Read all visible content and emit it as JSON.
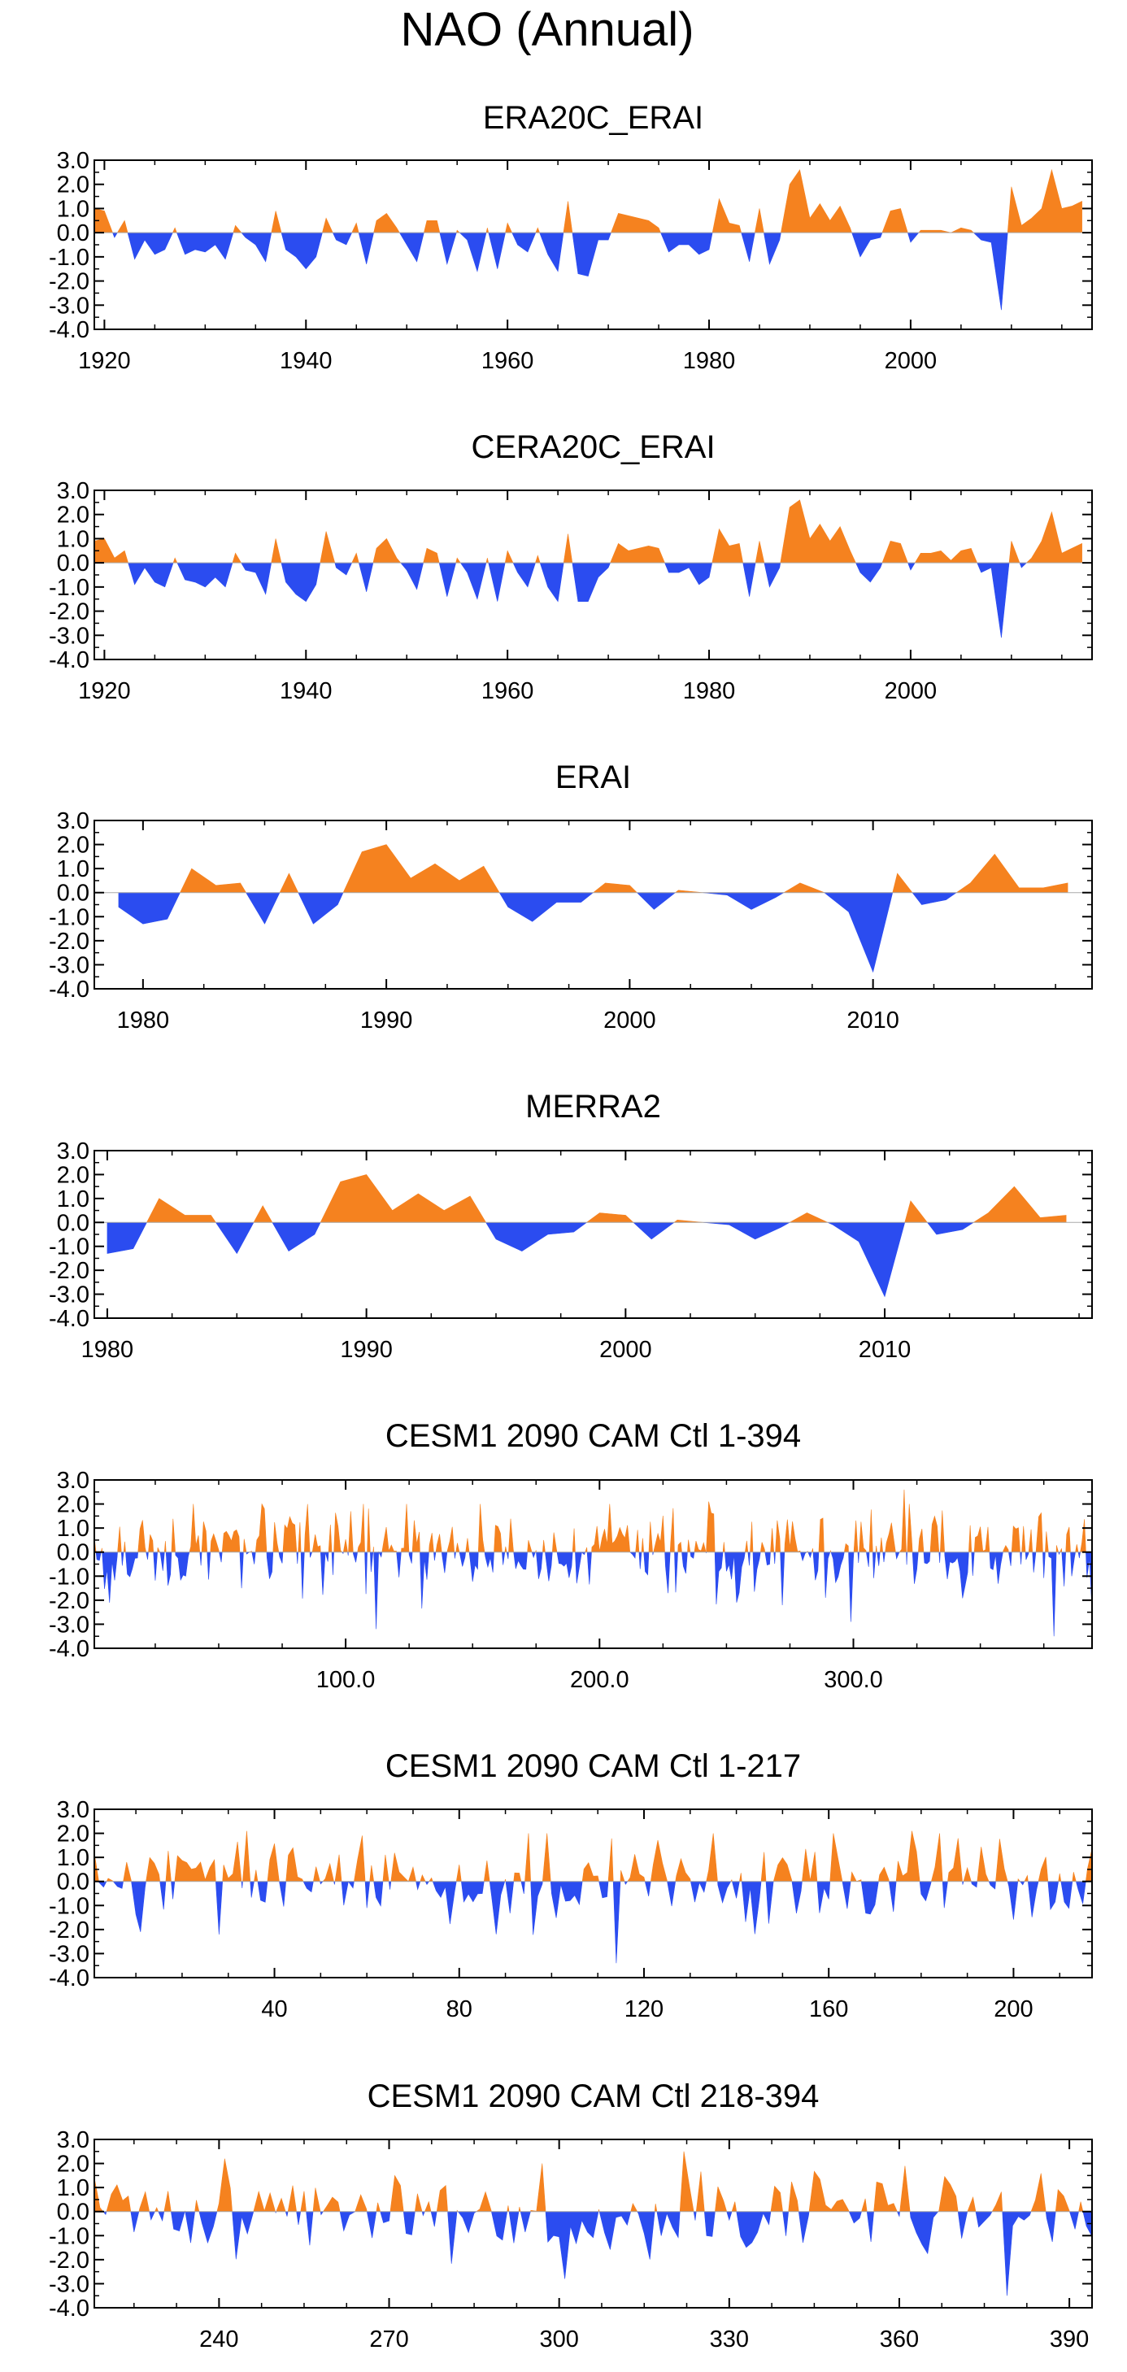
{
  "figure": {
    "title": "NAO (Annual)"
  },
  "colors": {
    "positive": "#f5821f",
    "negative": "#2b4cf0",
    "axis": "#000000",
    "zero_line": "#aaaaaa"
  },
  "chart_data": [
    {
      "type": "area",
      "title": "ERA20C_ERAI",
      "xlim": [
        1919,
        2018
      ],
      "ylim": [
        -4.0,
        3.0
      ],
      "yticks": [
        "3.0",
        "2.0",
        "1.0",
        "0.0",
        "-1.0",
        "-2.0",
        "-3.0",
        "-4.0"
      ],
      "xticks": [
        1920,
        1940,
        1960,
        1980,
        2000
      ],
      "xtick_labels": [
        "1920",
        "1940",
        "1960",
        "1980",
        "2000"
      ],
      "x": [
        1919,
        1920,
        1921,
        1922,
        1923,
        1924,
        1925,
        1926,
        1927,
        1928,
        1929,
        1930,
        1931,
        1932,
        1933,
        1934,
        1935,
        1936,
        1937,
        1938,
        1939,
        1940,
        1941,
        1942,
        1943,
        1944,
        1945,
        1946,
        1947,
        1948,
        1949,
        1950,
        1951,
        1952,
        1953,
        1954,
        1955,
        1956,
        1957,
        1958,
        1959,
        1960,
        1961,
        1962,
        1963,
        1964,
        1965,
        1966,
        1967,
        1968,
        1969,
        1970,
        1971,
        1972,
        1973,
        1974,
        1975,
        1976,
        1977,
        1978,
        1979,
        1980,
        1981,
        1982,
        1983,
        1984,
        1985,
        1986,
        1987,
        1988,
        1989,
        1990,
        1991,
        1992,
        1993,
        1994,
        1995,
        1996,
        1997,
        1998,
        1999,
        2000,
        2001,
        2002,
        2003,
        2004,
        2005,
        2006,
        2007,
        2008,
        2009,
        2010,
        2011,
        2012,
        2013,
        2014,
        2015,
        2016,
        2017
      ],
      "values": [
        1.0,
        0.9,
        -0.2,
        0.5,
        -1.1,
        -0.3,
        -0.9,
        -0.7,
        0.2,
        -0.9,
        -0.7,
        -0.8,
        -0.5,
        -1.1,
        0.3,
        -0.2,
        -0.5,
        -1.2,
        0.9,
        -0.7,
        -1.0,
        -1.5,
        -1.0,
        0.6,
        -0.3,
        -0.5,
        0.4,
        -1.3,
        0.5,
        0.8,
        0.2,
        -0.5,
        -1.2,
        0.5,
        0.5,
        -1.3,
        0.1,
        -0.3,
        -1.6,
        0.2,
        -1.5,
        0.4,
        -0.5,
        -0.8,
        0.2,
        -0.9,
        -1.6,
        1.3,
        -1.7,
        -1.8,
        -0.3,
        -0.3,
        0.8,
        0.7,
        0.6,
        0.5,
        0.2,
        -0.8,
        -0.5,
        -0.5,
        -0.9,
        -0.7,
        1.4,
        0.4,
        0.3,
        -1.2,
        1.0,
        -1.3,
        -0.3,
        2.0,
        2.6,
        0.6,
        1.2,
        0.5,
        1.1,
        0.2,
        -1.0,
        -0.3,
        -0.2,
        0.9,
        1.0,
        -0.4,
        0.1,
        0.1,
        0.1,
        0.0,
        0.2,
        0.1,
        -0.3,
        -0.4,
        -3.2,
        1.9,
        0.3,
        0.6,
        1.0,
        2.6,
        1.0,
        1.1,
        1.3
      ]
    },
    {
      "type": "area",
      "title": "CERA20C_ERAI",
      "xlim": [
        1919,
        2018
      ],
      "ylim": [
        -4.0,
        3.0
      ],
      "yticks": [
        "3.0",
        "2.0",
        "1.0",
        "0.0",
        "-1.0",
        "-2.0",
        "-3.0",
        "-4.0"
      ],
      "xticks": [
        1920,
        1940,
        1960,
        1980,
        2000
      ],
      "xtick_labels": [
        "1920",
        "1940",
        "1960",
        "1980",
        "2000"
      ],
      "x": [
        1919,
        1920,
        1921,
        1922,
        1923,
        1924,
        1925,
        1926,
        1927,
        1928,
        1929,
        1930,
        1931,
        1932,
        1933,
        1934,
        1935,
        1936,
        1937,
        1938,
        1939,
        1940,
        1941,
        1942,
        1943,
        1944,
        1945,
        1946,
        1947,
        1948,
        1949,
        1950,
        1951,
        1952,
        1953,
        1954,
        1955,
        1956,
        1957,
        1958,
        1959,
        1960,
        1961,
        1962,
        1963,
        1964,
        1965,
        1966,
        1967,
        1968,
        1969,
        1970,
        1971,
        1972,
        1973,
        1974,
        1975,
        1976,
        1977,
        1978,
        1979,
        1980,
        1981,
        1982,
        1983,
        1984,
        1985,
        1986,
        1987,
        1988,
        1989,
        1990,
        1991,
        1992,
        1993,
        1994,
        1995,
        1996,
        1997,
        1998,
        1999,
        2000,
        2001,
        2002,
        2003,
        2004,
        2005,
        2006,
        2007,
        2008,
        2009,
        2010,
        2011,
        2012,
        2013,
        2014,
        2015,
        2016,
        2017
      ],
      "values": [
        0.9,
        1.0,
        0.2,
        0.5,
        -0.9,
        -0.2,
        -0.8,
        -1.0,
        0.2,
        -0.7,
        -0.8,
        -1.0,
        -0.6,
        -1.0,
        0.4,
        -0.3,
        -0.4,
        -1.3,
        1.0,
        -0.8,
        -1.3,
        -1.6,
        -0.9,
        1.3,
        -0.2,
        -0.5,
        0.4,
        -1.2,
        0.6,
        1.0,
        0.2,
        -0.3,
        -1.1,
        0.6,
        0.4,
        -1.4,
        0.2,
        -0.4,
        -1.5,
        0.2,
        -1.6,
        0.5,
        -0.4,
        -1.0,
        0.3,
        -1.0,
        -1.6,
        1.2,
        -1.6,
        -1.6,
        -0.6,
        -0.2,
        0.8,
        0.5,
        0.6,
        0.7,
        0.6,
        -0.4,
        -0.4,
        -0.2,
        -0.9,
        -0.6,
        1.4,
        0.7,
        0.8,
        -1.4,
        0.9,
        -1.0,
        -0.2,
        2.3,
        2.6,
        1.0,
        1.6,
        0.9,
        1.5,
        0.5,
        -0.4,
        -0.8,
        -0.2,
        0.9,
        0.8,
        -0.3,
        0.4,
        0.4,
        0.5,
        0.1,
        0.5,
        0.6,
        -0.4,
        -0.2,
        -3.1,
        0.9,
        -0.2,
        0.2,
        0.9,
        2.1,
        0.4,
        0.6,
        0.8
      ]
    },
    {
      "type": "area",
      "title": "ERAI",
      "xlim": [
        1978,
        2019
      ],
      "ylim": [
        -4.0,
        3.0
      ],
      "yticks": [
        "3.0",
        "2.0",
        "1.0",
        "0.0",
        "-1.0",
        "-2.0",
        "-3.0",
        "-4.0"
      ],
      "xticks": [
        1980,
        1990,
        2000,
        2010
      ],
      "xtick_labels": [
        "1980",
        "1990",
        "2000",
        "2010"
      ],
      "x": [
        1979,
        1980,
        1981,
        1982,
        1983,
        1984,
        1985,
        1986,
        1987,
        1988,
        1989,
        1990,
        1991,
        1992,
        1993,
        1994,
        1995,
        1996,
        1997,
        1998,
        1999,
        2000,
        2001,
        2002,
        2003,
        2004,
        2005,
        2006,
        2007,
        2008,
        2009,
        2010,
        2011,
        2012,
        2013,
        2014,
        2015,
        2016,
        2017,
        2018
      ],
      "values": [
        -0.6,
        -1.3,
        -1.1,
        1.0,
        0.3,
        0.4,
        -1.3,
        0.8,
        -1.3,
        -0.5,
        1.7,
        2.0,
        0.6,
        1.2,
        0.5,
        1.1,
        -0.6,
        -1.2,
        -0.4,
        -0.4,
        0.4,
        0.3,
        -0.7,
        0.1,
        0.0,
        -0.1,
        -0.7,
        -0.2,
        0.4,
        0.0,
        -0.8,
        -3.3,
        0.8,
        -0.5,
        -0.3,
        0.4,
        1.6,
        0.2,
        0.2,
        0.4
      ]
    },
    {
      "type": "area",
      "title": "MERRA2",
      "xlim": [
        1979.5,
        2018
      ],
      "ylim": [
        -4.0,
        3.0
      ],
      "yticks": [
        "3.0",
        "2.0",
        "1.0",
        "0.0",
        "-1.0",
        "-2.0",
        "-3.0",
        "-4.0"
      ],
      "xticks": [
        1980,
        1990,
        2000,
        2010
      ],
      "xtick_labels": [
        "1980",
        "1990",
        "2000",
        "2010"
      ],
      "x": [
        1980,
        1981,
        1982,
        1983,
        1984,
        1985,
        1986,
        1987,
        1988,
        1989,
        1990,
        1991,
        1992,
        1993,
        1994,
        1995,
        1996,
        1997,
        1998,
        1999,
        2000,
        2001,
        2002,
        2003,
        2004,
        2005,
        2006,
        2007,
        2008,
        2009,
        2010,
        2011,
        2012,
        2013,
        2014,
        2015,
        2016,
        2017
      ],
      "values": [
        -1.3,
        -1.1,
        1.0,
        0.3,
        0.3,
        -1.3,
        0.7,
        -1.2,
        -0.5,
        1.7,
        2.0,
        0.5,
        1.2,
        0.5,
        1.1,
        -0.7,
        -1.2,
        -0.5,
        -0.4,
        0.4,
        0.3,
        -0.7,
        0.1,
        0.0,
        -0.1,
        -0.7,
        -0.2,
        0.4,
        -0.1,
        -0.8,
        -3.1,
        0.9,
        -0.5,
        -0.3,
        0.4,
        1.5,
        0.2,
        0.3
      ]
    },
    {
      "type": "area",
      "title": "CESM1 2090 CAM Ctl 1-394",
      "xlim": [
        1,
        394
      ],
      "ylim": [
        -4.0,
        3.0
      ],
      "yticks": [
        "3.0",
        "2.0",
        "1.0",
        "0.0",
        "-1.0",
        "-2.0",
        "-3.0",
        "-4.0"
      ],
      "xticks": [
        100,
        200,
        300
      ],
      "xtick_labels": [
        "100.0",
        "200.0",
        "300.0"
      ],
      "series_generator": {
        "start": 1,
        "end": 394,
        "seed": 17,
        "amplitude": 1.0
      },
      "highlights": [
        [
          7,
          -2.1
        ],
        [
          112,
          -3.2
        ],
        [
          299,
          -2.9
        ],
        [
          379,
          -3.5
        ],
        [
          320,
          2.6
        ],
        [
          243,
          2.1
        ]
      ]
    },
    {
      "type": "area",
      "title": "CESM1 2090 CAM Ctl 1-217",
      "xlim": [
        1,
        217
      ],
      "ylim": [
        -4.0,
        3.0
      ],
      "yticks": [
        "3.0",
        "2.0",
        "1.0",
        "0.0",
        "-1.0",
        "-2.0",
        "-3.0",
        "-4.0"
      ],
      "xticks": [
        40,
        80,
        120,
        160,
        200
      ],
      "xtick_labels": [
        "40",
        "80",
        "120",
        "160",
        "200"
      ],
      "series_generator": {
        "start": 1,
        "end": 217,
        "seed": 29,
        "amplitude": 1.0
      },
      "highlights": [
        [
          11,
          -2.1
        ],
        [
          88,
          -2.2
        ],
        [
          114,
          -3.4
        ],
        [
          34,
          2.1
        ],
        [
          178,
          2.1
        ]
      ]
    },
    {
      "type": "area",
      "title": "CESM1 2090 CAM Ctl 218-394",
      "xlim": [
        218,
        394
      ],
      "ylim": [
        -4.0,
        3.0
      ],
      "yticks": [
        "3.0",
        "2.0",
        "1.0",
        "0.0",
        "-1.0",
        "-2.0",
        "-3.0",
        "-4.0"
      ],
      "xticks": [
        240,
        270,
        300,
        330,
        360,
        390
      ],
      "xtick_labels": [
        "240",
        "270",
        "300",
        "330",
        "360",
        "390"
      ],
      "series_generator": {
        "start": 218,
        "end": 394,
        "seed": 41,
        "amplitude": 1.0
      },
      "highlights": [
        [
          301,
          -2.8
        ],
        [
          379,
          -3.5
        ],
        [
          322,
          2.5
        ],
        [
          241,
          2.2
        ],
        [
          361,
          1.9
        ]
      ]
    }
  ]
}
